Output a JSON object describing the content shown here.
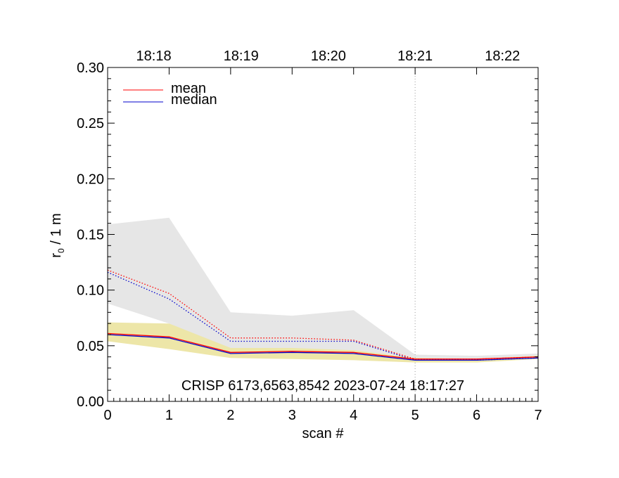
{
  "chart_data": {
    "type": "line",
    "title": "",
    "xlabel": "scan #",
    "ylabel": "r",
    "ylabel_sub": "0",
    "ylabel_suffix": " / 1 m",
    "xlim": [
      0,
      7
    ],
    "ylim": [
      0.0,
      0.3
    ],
    "x_ticks": [
      0,
      1,
      2,
      3,
      4,
      5,
      6,
      7
    ],
    "x_tick_labels": [
      "0",
      "1",
      "2",
      "3",
      "4",
      "5",
      "6",
      "7"
    ],
    "y_ticks": [
      0.0,
      0.05,
      0.1,
      0.15,
      0.2,
      0.25,
      0.3
    ],
    "y_tick_labels": [
      "0.00",
      "0.05",
      "0.10",
      "0.15",
      "0.20",
      "0.25",
      "0.30"
    ],
    "top_axis": {
      "labels": [
        "18:18",
        "18:19",
        "18:20",
        "18:21",
        "18:22"
      ],
      "positions": [
        0.75,
        2.17,
        3.59,
        5.0,
        6.42
      ]
    },
    "vertical_marker": 5,
    "annotation": "CRISP 6173,6563,8542 2023-07-24 18:17:27",
    "legend": [
      {
        "name": "mean",
        "color": "#ff0000"
      },
      {
        "name": "median",
        "color": "#0000cc"
      }
    ],
    "x": [
      0,
      1,
      2,
      3,
      4,
      5,
      6,
      7
    ],
    "bands": [
      {
        "name": "gray-range",
        "color": "#e6e6e6",
        "upper": [
          0.159,
          0.165,
          0.08,
          0.077,
          0.082,
          0.042,
          0.041,
          0.043
        ],
        "lower": [
          0.088,
          0.07,
          0.045,
          0.046,
          0.044,
          0.037,
          0.036,
          0.039
        ]
      },
      {
        "name": "yellow-range",
        "color": "#ede6a8",
        "upper": [
          0.071,
          0.07,
          0.048,
          0.048,
          0.046,
          0.039,
          0.038,
          0.041
        ],
        "lower": [
          0.054,
          0.047,
          0.039,
          0.038,
          0.037,
          0.035,
          0.035,
          0.038
        ]
      }
    ],
    "series": [
      {
        "name": "mean-dotted",
        "color": "#ff0000",
        "dash": true,
        "values": [
          0.118,
          0.097,
          0.057,
          0.057,
          0.055,
          0.038,
          0.038,
          0.04
        ]
      },
      {
        "name": "median-dotted",
        "color": "#0000cc",
        "dash": true,
        "values": [
          0.116,
          0.092,
          0.054,
          0.054,
          0.054,
          0.037,
          0.037,
          0.039
        ]
      },
      {
        "name": "mean",
        "color": "#ff0000",
        "dash": false,
        "values": [
          0.061,
          0.058,
          0.044,
          0.045,
          0.044,
          0.038,
          0.038,
          0.04
        ]
      },
      {
        "name": "median",
        "color": "#0000cc",
        "dash": false,
        "values": [
          0.06,
          0.057,
          0.043,
          0.044,
          0.043,
          0.037,
          0.037,
          0.039
        ]
      }
    ]
  }
}
